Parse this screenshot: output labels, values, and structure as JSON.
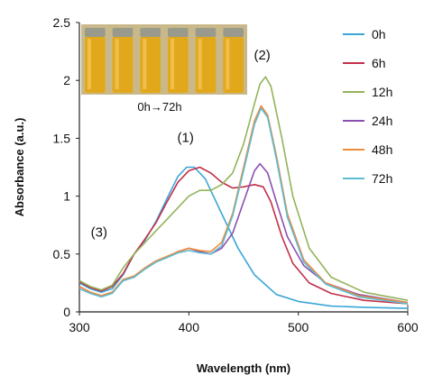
{
  "chart_data": {
    "type": "line",
    "xlabel": "Wavelength (nm)",
    "ylabel": "Absorbance (a.u.)",
    "xlim": [
      300,
      600
    ],
    "ylim": [
      0,
      2.5
    ],
    "x_ticks": [
      300,
      400,
      500,
      600
    ],
    "y_ticks": [
      0,
      0.5,
      1,
      1.5,
      2,
      2.5
    ],
    "y_tick_labels": [
      "0",
      "0.5",
      "1",
      "1.5",
      "2",
      "2.5"
    ],
    "grid": false,
    "legend_position": "right",
    "series": [
      {
        "name": "0h",
        "color": "#3aa6d6",
        "points": [
          [
            300,
            0.25
          ],
          [
            310,
            0.2
          ],
          [
            320,
            0.17
          ],
          [
            330,
            0.2
          ],
          [
            340,
            0.32
          ],
          [
            350,
            0.5
          ],
          [
            360,
            0.62
          ],
          [
            370,
            0.78
          ],
          [
            380,
            0.98
          ],
          [
            390,
            1.17
          ],
          [
            398,
            1.25
          ],
          [
            405,
            1.25
          ],
          [
            415,
            1.15
          ],
          [
            430,
            0.85
          ],
          [
            445,
            0.55
          ],
          [
            460,
            0.32
          ],
          [
            480,
            0.15
          ],
          [
            500,
            0.09
          ],
          [
            530,
            0.05
          ],
          [
            560,
            0.04
          ],
          [
            600,
            0.03
          ]
        ]
      },
      {
        "name": "6h",
        "color": "#c0304a",
        "points": [
          [
            300,
            0.26
          ],
          [
            310,
            0.21
          ],
          [
            320,
            0.18
          ],
          [
            330,
            0.22
          ],
          [
            340,
            0.33
          ],
          [
            350,
            0.5
          ],
          [
            360,
            0.63
          ],
          [
            370,
            0.77
          ],
          [
            380,
            0.95
          ],
          [
            390,
            1.12
          ],
          [
            400,
            1.22
          ],
          [
            410,
            1.25
          ],
          [
            420,
            1.2
          ],
          [
            430,
            1.12
          ],
          [
            440,
            1.07
          ],
          [
            450,
            1.08
          ],
          [
            460,
            1.1
          ],
          [
            468,
            1.08
          ],
          [
            475,
            0.95
          ],
          [
            485,
            0.65
          ],
          [
            495,
            0.42
          ],
          [
            510,
            0.25
          ],
          [
            530,
            0.16
          ],
          [
            560,
            0.1
          ],
          [
            600,
            0.07
          ]
        ]
      },
      {
        "name": "12h",
        "color": "#94b35a",
        "points": [
          [
            300,
            0.27
          ],
          [
            310,
            0.22
          ],
          [
            320,
            0.19
          ],
          [
            330,
            0.23
          ],
          [
            340,
            0.38
          ],
          [
            350,
            0.5
          ],
          [
            360,
            0.6
          ],
          [
            370,
            0.7
          ],
          [
            380,
            0.8
          ],
          [
            390,
            0.9
          ],
          [
            400,
            1.0
          ],
          [
            410,
            1.05
          ],
          [
            420,
            1.05
          ],
          [
            430,
            1.1
          ],
          [
            440,
            1.2
          ],
          [
            450,
            1.45
          ],
          [
            460,
            1.8
          ],
          [
            465,
            1.97
          ],
          [
            470,
            2.03
          ],
          [
            475,
            1.95
          ],
          [
            485,
            1.5
          ],
          [
            495,
            1.0
          ],
          [
            510,
            0.55
          ],
          [
            530,
            0.3
          ],
          [
            560,
            0.17
          ],
          [
            600,
            0.1
          ]
        ]
      },
      {
        "name": "24h",
        "color": "#8a4fb0",
        "points": [
          [
            300,
            0.22
          ],
          [
            310,
            0.17
          ],
          [
            320,
            0.14
          ],
          [
            330,
            0.17
          ],
          [
            340,
            0.27
          ],
          [
            350,
            0.3
          ],
          [
            360,
            0.38
          ],
          [
            370,
            0.44
          ],
          [
            380,
            0.47
          ],
          [
            390,
            0.52
          ],
          [
            400,
            0.55
          ],
          [
            410,
            0.52
          ],
          [
            420,
            0.5
          ],
          [
            430,
            0.55
          ],
          [
            440,
            0.68
          ],
          [
            450,
            0.95
          ],
          [
            460,
            1.22
          ],
          [
            465,
            1.28
          ],
          [
            472,
            1.2
          ],
          [
            480,
            0.95
          ],
          [
            490,
            0.65
          ],
          [
            505,
            0.4
          ],
          [
            525,
            0.25
          ],
          [
            555,
            0.15
          ],
          [
            600,
            0.08
          ]
        ]
      },
      {
        "name": "48h",
        "color": "#f08b3a",
        "points": [
          [
            300,
            0.22
          ],
          [
            310,
            0.17
          ],
          [
            320,
            0.14
          ],
          [
            330,
            0.17
          ],
          [
            340,
            0.28
          ],
          [
            350,
            0.31
          ],
          [
            360,
            0.38
          ],
          [
            370,
            0.44
          ],
          [
            380,
            0.48
          ],
          [
            390,
            0.52
          ],
          [
            400,
            0.55
          ],
          [
            410,
            0.53
          ],
          [
            420,
            0.52
          ],
          [
            430,
            0.6
          ],
          [
            440,
            0.85
          ],
          [
            450,
            1.25
          ],
          [
            460,
            1.65
          ],
          [
            466,
            1.78
          ],
          [
            472,
            1.7
          ],
          [
            480,
            1.35
          ],
          [
            490,
            0.85
          ],
          [
            505,
            0.45
          ],
          [
            525,
            0.25
          ],
          [
            555,
            0.14
          ],
          [
            600,
            0.08
          ]
        ]
      },
      {
        "name": "72h",
        "color": "#5cbcd1",
        "points": [
          [
            300,
            0.2
          ],
          [
            310,
            0.16
          ],
          [
            320,
            0.13
          ],
          [
            330,
            0.16
          ],
          [
            340,
            0.27
          ],
          [
            350,
            0.3
          ],
          [
            360,
            0.37
          ],
          [
            370,
            0.43
          ],
          [
            380,
            0.47
          ],
          [
            390,
            0.51
          ],
          [
            400,
            0.53
          ],
          [
            410,
            0.51
          ],
          [
            420,
            0.5
          ],
          [
            430,
            0.57
          ],
          [
            440,
            0.83
          ],
          [
            450,
            1.22
          ],
          [
            460,
            1.62
          ],
          [
            466,
            1.76
          ],
          [
            472,
            1.68
          ],
          [
            480,
            1.32
          ],
          [
            490,
            0.82
          ],
          [
            505,
            0.43
          ],
          [
            525,
            0.24
          ],
          [
            555,
            0.13
          ],
          [
            600,
            0.07
          ]
        ]
      }
    ],
    "annotations": [
      {
        "text": "(1)",
        "x": 397,
        "y": 1.47
      },
      {
        "text": "(2)",
        "x": 467,
        "y": 2.18
      },
      {
        "text": "(3)",
        "x": 318,
        "y": 0.65
      }
    ],
    "inset": {
      "caption": "0h→72h",
      "vial_count": 6,
      "background_color": "#c9b98a",
      "liquid_color": "#e2a81c"
    }
  }
}
